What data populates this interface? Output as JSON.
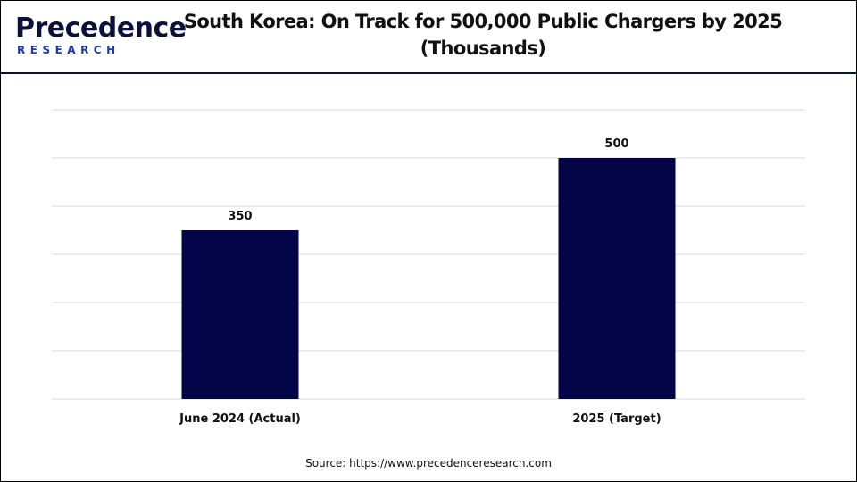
{
  "brand": {
    "logo_line1": "Precedence",
    "logo_line2": "RESEARCH"
  },
  "chart_data": {
    "type": "bar",
    "title": "South Korea: On Track for 500,000 Public Chargers by 2025",
    "subtitle": "(Thousands)",
    "categories": [
      "June 2024 (Actual)",
      "2025 (Target)"
    ],
    "values": [
      350,
      500
    ],
    "data_labels": [
      "350",
      "500"
    ],
    "ylim": [
      0,
      600
    ],
    "y_axis_visible": false,
    "grid": true,
    "legend": "none",
    "bar_color": "#040549",
    "grid_color": "#d9d9d9"
  },
  "footer": {
    "source": "Source: https://www.precedenceresearch.com"
  }
}
